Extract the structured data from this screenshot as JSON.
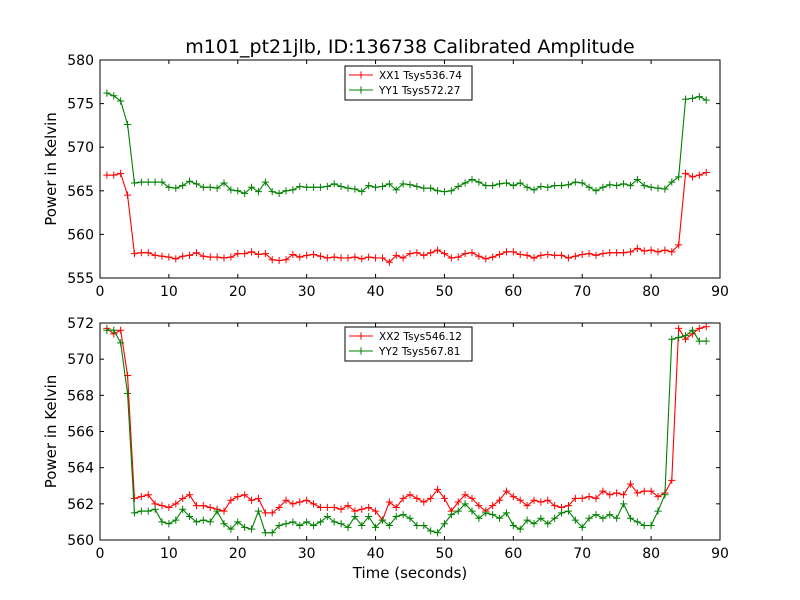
{
  "title": "m101_pt21jlb, ID:136738 Calibrated Amplitude",
  "xlabel": "Time (seconds)",
  "colors": {
    "xx": "#ff0000",
    "yy": "#008000",
    "axes": "#000000",
    "background": "#ffffff"
  },
  "chart_data": [
    {
      "type": "line",
      "ylabel": "Power in Kelvin",
      "xlim": [
        0,
        90
      ],
      "ylim": [
        555,
        580
      ],
      "xticks": [
        "0",
        "10",
        "20",
        "30",
        "40",
        "50",
        "60",
        "70",
        "80",
        "90"
      ],
      "yticks": [
        "555",
        "560",
        "565",
        "570",
        "575",
        "580"
      ],
      "grid": false,
      "legend": "top-center",
      "x": [
        1,
        2,
        3,
        4,
        5,
        6,
        7,
        8,
        9,
        10,
        11,
        12,
        13,
        14,
        15,
        16,
        17,
        18,
        19,
        20,
        21,
        22,
        23,
        24,
        25,
        26,
        27,
        28,
        29,
        30,
        31,
        32,
        33,
        34,
        35,
        36,
        37,
        38,
        39,
        40,
        41,
        42,
        43,
        44,
        45,
        46,
        47,
        48,
        49,
        50,
        51,
        52,
        53,
        54,
        55,
        56,
        57,
        58,
        59,
        60,
        61,
        62,
        63,
        64,
        65,
        66,
        67,
        68,
        69,
        70,
        71,
        72,
        73,
        74,
        75,
        76,
        77,
        78,
        79,
        80,
        81,
        82,
        83,
        84,
        85,
        86,
        87,
        88
      ],
      "series": [
        {
          "name": "XX1 Tsys536.74",
          "color": "#ff0000",
          "values": [
            566.8,
            566.8,
            567.0,
            564.5,
            557.8,
            557.9,
            557.9,
            557.6,
            557.5,
            557.4,
            557.2,
            557.5,
            557.6,
            557.9,
            557.5,
            557.4,
            557.4,
            557.3,
            557.4,
            557.8,
            557.8,
            558.0,
            557.7,
            557.8,
            557.1,
            557.0,
            557.1,
            557.7,
            557.4,
            557.6,
            557.7,
            557.5,
            557.3,
            557.4,
            557.3,
            557.3,
            557.4,
            557.2,
            557.4,
            557.3,
            557.3,
            556.8,
            557.6,
            557.3,
            557.8,
            557.9,
            557.6,
            557.9,
            558.2,
            557.8,
            557.3,
            557.4,
            557.8,
            557.9,
            557.5,
            557.2,
            557.4,
            557.7,
            558.0,
            558.0,
            557.7,
            557.6,
            557.3,
            557.6,
            557.7,
            557.6,
            557.6,
            557.3,
            557.5,
            557.7,
            557.8,
            557.6,
            557.8,
            557.9,
            557.9,
            557.9,
            558.0,
            558.4,
            558.1,
            558.2,
            558.0,
            558.2,
            558.0,
            558.8,
            567.0,
            566.6,
            566.8,
            567.1
          ]
        },
        {
          "name": "YY1 Tsys572.27",
          "color": "#008000",
          "values": [
            576.2,
            575.9,
            575.3,
            572.6,
            565.9,
            566.0,
            566.0,
            566.0,
            566.0,
            565.4,
            565.3,
            565.6,
            566.1,
            565.8,
            565.4,
            565.4,
            565.3,
            565.9,
            565.1,
            565.0,
            564.7,
            565.4,
            564.9,
            566.0,
            564.9,
            564.7,
            565.0,
            565.1,
            565.5,
            565.4,
            565.4,
            565.4,
            565.5,
            565.8,
            565.5,
            565.3,
            565.2,
            564.9,
            565.6,
            565.4,
            565.5,
            565.8,
            565.1,
            565.8,
            565.7,
            565.5,
            565.3,
            565.3,
            565.0,
            564.9,
            565.0,
            565.5,
            565.9,
            566.3,
            566.0,
            565.6,
            565.6,
            565.8,
            565.9,
            565.6,
            565.9,
            565.4,
            565.1,
            565.5,
            565.4,
            565.6,
            565.6,
            565.7,
            566.0,
            565.9,
            565.4,
            565.0,
            565.4,
            565.7,
            565.6,
            565.8,
            565.6,
            566.3,
            565.6,
            565.4,
            565.3,
            565.2,
            566.0,
            566.6,
            575.5,
            575.6,
            575.8,
            575.4
          ]
        }
      ]
    },
    {
      "type": "line",
      "ylabel": "Power in Kelvin",
      "xlim": [
        0,
        90
      ],
      "ylim": [
        560,
        572
      ],
      "xticks": [
        "0",
        "10",
        "20",
        "30",
        "40",
        "50",
        "60",
        "70",
        "80",
        "90"
      ],
      "yticks": [
        "560",
        "562",
        "564",
        "566",
        "568",
        "570",
        "572"
      ],
      "grid": false,
      "legend": "top-center",
      "x": [
        1,
        2,
        3,
        4,
        5,
        6,
        7,
        8,
        9,
        10,
        11,
        12,
        13,
        14,
        15,
        16,
        17,
        18,
        19,
        20,
        21,
        22,
        23,
        24,
        25,
        26,
        27,
        28,
        29,
        30,
        31,
        32,
        33,
        34,
        35,
        36,
        37,
        38,
        39,
        40,
        41,
        42,
        43,
        44,
        45,
        46,
        47,
        48,
        49,
        50,
        51,
        52,
        53,
        54,
        55,
        56,
        57,
        58,
        59,
        60,
        61,
        62,
        63,
        64,
        65,
        66,
        67,
        68,
        69,
        70,
        71,
        72,
        73,
        74,
        75,
        76,
        77,
        78,
        79,
        80,
        81,
        82,
        83,
        84,
        85,
        86,
        87,
        88
      ],
      "series": [
        {
          "name": "XX2 Tsys546.12",
          "color": "#ff0000",
          "values": [
            571.7,
            571.4,
            571.6,
            569.1,
            562.3,
            562.4,
            562.5,
            562.0,
            561.9,
            561.8,
            562.0,
            562.3,
            562.5,
            561.9,
            561.9,
            561.8,
            561.7,
            561.6,
            562.2,
            562.4,
            562.5,
            562.2,
            562.3,
            561.5,
            561.5,
            561.8,
            562.2,
            562.0,
            562.1,
            562.2,
            562.0,
            561.8,
            561.8,
            561.8,
            561.7,
            561.9,
            561.6,
            561.7,
            561.8,
            561.6,
            561.1,
            562.1,
            561.8,
            562.3,
            562.5,
            562.3,
            562.1,
            562.3,
            562.8,
            562.3,
            561.6,
            562.1,
            562.5,
            562.3,
            561.9,
            561.6,
            561.9,
            562.2,
            562.7,
            562.4,
            562.2,
            561.9,
            562.2,
            562.1,
            562.2,
            561.9,
            561.8,
            561.9,
            562.3,
            562.3,
            562.4,
            562.3,
            562.7,
            562.5,
            562.6,
            562.5,
            563.1,
            562.6,
            562.7,
            562.7,
            562.4,
            562.6,
            563.3,
            571.7,
            571.1,
            571.4,
            571.7,
            571.8
          ]
        },
        {
          "name": "YY2 Tsys567.81",
          "color": "#008000",
          "values": [
            571.6,
            571.6,
            570.9,
            568.1,
            561.5,
            561.6,
            561.6,
            561.7,
            561.0,
            560.9,
            561.1,
            561.7,
            561.3,
            561.0,
            561.1,
            561.0,
            561.6,
            560.9,
            560.6,
            561.0,
            560.7,
            560.6,
            561.6,
            560.4,
            560.4,
            560.8,
            560.9,
            561.0,
            560.8,
            561.0,
            560.8,
            561.0,
            561.3,
            561.0,
            560.9,
            560.7,
            561.3,
            560.8,
            561.3,
            560.7,
            561.1,
            560.8,
            561.3,
            561.4,
            561.2,
            560.8,
            560.8,
            560.5,
            560.4,
            560.9,
            561.4,
            561.6,
            562.0,
            561.6,
            561.2,
            561.5,
            561.4,
            561.2,
            561.5,
            560.8,
            560.6,
            561.1,
            560.9,
            561.2,
            560.9,
            561.2,
            561.5,
            561.6,
            561.1,
            560.7,
            561.2,
            561.4,
            561.2,
            561.4,
            561.2,
            562.0,
            561.2,
            561.0,
            560.8,
            560.8,
            561.6,
            562.5,
            571.1,
            571.2,
            571.3,
            571.6,
            571.0,
            571.0
          ]
        }
      ]
    }
  ]
}
